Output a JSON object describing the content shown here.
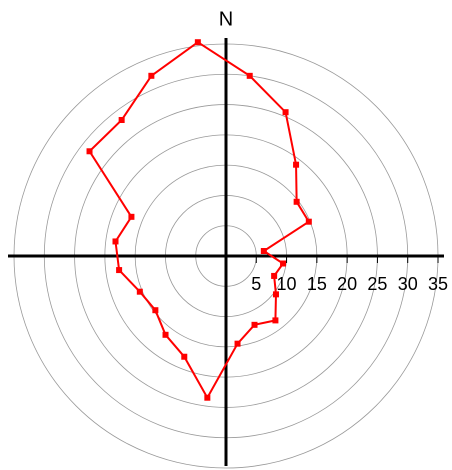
{
  "chart_data": {
    "type": "polar",
    "direction_label": "N",
    "theta": [
      7.5,
      22.5,
      37.5,
      52.5,
      67.5,
      82.5,
      97.5,
      112.5,
      127.5,
      142.5,
      157.5,
      172.5,
      187.5,
      202.5,
      217.5,
      232.5,
      247.5,
      262.5,
      277.5,
      292.5,
      307.5,
      322.5,
      337.5,
      352.5
    ],
    "series": [
      {
        "color": "#ff0000",
        "values": [
          30,
          25.7,
          19,
          14.7,
          14.8,
          6.3,
          9.5,
          8.6,
          10.4,
          13.4,
          12.3,
          14.6,
          23.6,
          18,
          16.4,
          14.7,
          15.4,
          17.8,
          18.4,
          16.9,
          28.4,
          28.3,
          32.2,
          35.6
        ]
      }
    ],
    "rlim": [
      0,
      35
    ],
    "rticks": [
      5,
      10,
      15,
      20,
      25,
      30,
      35
    ],
    "grid": true
  }
}
